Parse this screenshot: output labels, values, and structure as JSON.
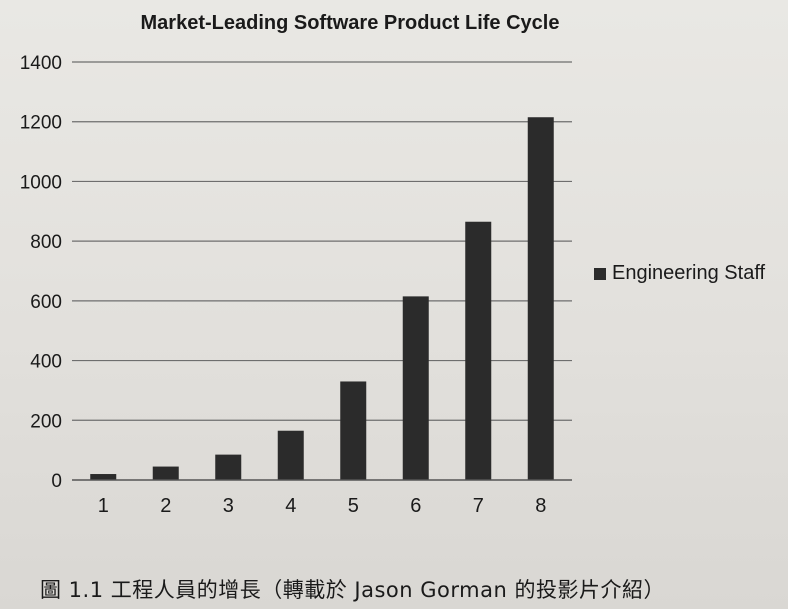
{
  "chart_data": {
    "type": "bar",
    "title": "Market-Leading Software Product Life Cycle",
    "categories": [
      "1",
      "2",
      "3",
      "4",
      "5",
      "6",
      "7",
      "8"
    ],
    "series": [
      {
        "name": "Engineering Staff",
        "values": [
          20,
          45,
          85,
          165,
          330,
          615,
          865,
          1215
        ]
      }
    ],
    "ylim": [
      0,
      1400
    ],
    "yticks": [
      "0",
      "200",
      "400",
      "600",
      "800",
      "1000",
      "1200",
      "1400"
    ],
    "grid": true,
    "legend": "right",
    "colors": {
      "bar": "#2b2b2b",
      "grid": "#6e6e6e"
    }
  },
  "caption": "圖 1.1 工程人員的增長（轉載於 Jason Gorman 的投影片介紹）"
}
